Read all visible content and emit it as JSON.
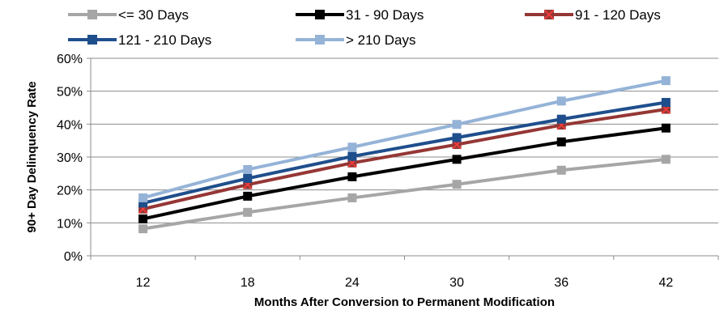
{
  "chart_data": {
    "type": "line",
    "title": "",
    "xlabel": "Months After Conversion to Permanent Modification",
    "ylabel": "90+ Day Delinquency Rate",
    "categories": [
      "12",
      "18",
      "24",
      "30",
      "36",
      "42"
    ],
    "ylim": [
      0,
      60
    ],
    "yticks": [
      0,
      10,
      20,
      30,
      40,
      50,
      60
    ],
    "ytick_labels": [
      "0%",
      "10%",
      "20%",
      "30%",
      "40%",
      "50%",
      "60%"
    ],
    "grid": "horizontal",
    "legend_position": "top",
    "series": [
      {
        "name": "<= 30 Days",
        "color": "#a6a6a6",
        "marker": "square",
        "values": [
          8.2,
          13.2,
          17.6,
          21.7,
          26.0,
          29.3
        ]
      },
      {
        "name": "31 - 90 Days",
        "color": "#000000",
        "marker": "square",
        "values": [
          11.2,
          18.1,
          24.0,
          29.3,
          34.6,
          38.8
        ]
      },
      {
        "name": "91 - 120 Days",
        "color": "#953735",
        "marker": "x-square",
        "values": [
          14.2,
          21.6,
          28.2,
          33.8,
          39.7,
          44.5
        ]
      },
      {
        "name": "121 - 210 Days",
        "color": "#1f4e8c",
        "marker": "square",
        "values": [
          16.0,
          23.5,
          30.2,
          35.9,
          41.5,
          46.6
        ]
      },
      {
        "name": "> 210 Days",
        "color": "#95b3d7",
        "marker": "square",
        "values": [
          17.6,
          26.2,
          33.0,
          39.9,
          47.0,
          53.2
        ]
      }
    ]
  }
}
